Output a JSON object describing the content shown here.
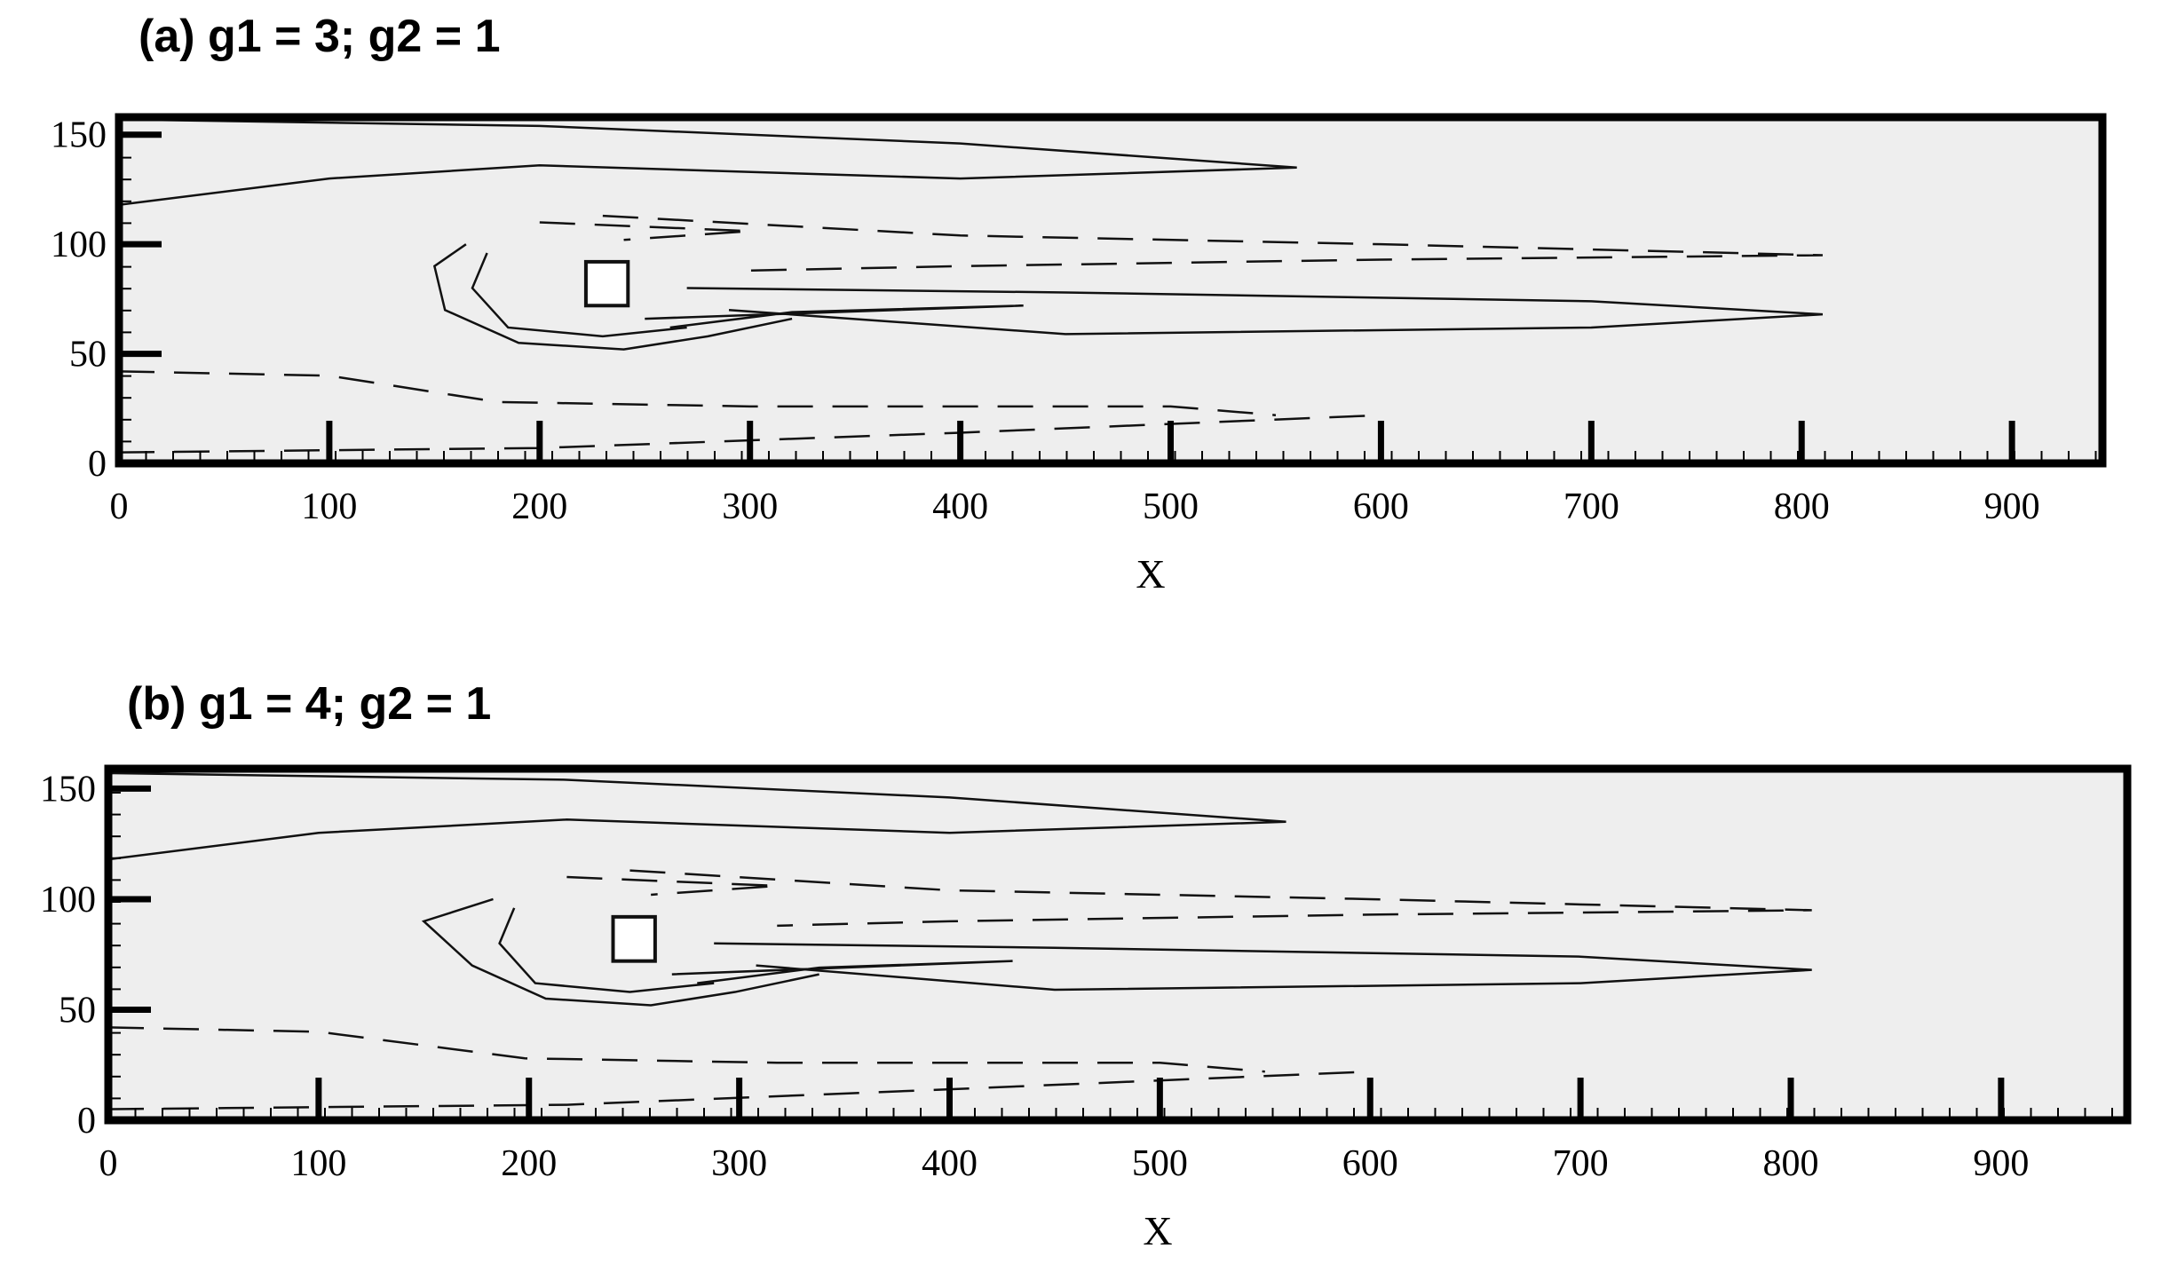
{
  "chart_data": [
    {
      "type": "contour",
      "title": "(a) g1 = 3; g2 = 1",
      "xlabel": "X",
      "xlim": [
        0,
        943
      ],
      "ylim": [
        0,
        158
      ],
      "xticks": [
        0,
        100,
        200,
        300,
        400,
        500,
        600,
        700,
        800,
        900
      ],
      "yticks": [
        0,
        50,
        100,
        150
      ]
    },
    {
      "type": "contour",
      "title": "(b) g1 = 4; g2 = 1",
      "xlabel": "X",
      "xlim": [
        0,
        960
      ],
      "ylim": [
        0,
        159
      ],
      "xticks": [
        0,
        100,
        200,
        300,
        400,
        500,
        600,
        700,
        800,
        900
      ],
      "yticks": [
        0,
        50,
        100,
        150
      ]
    }
  ]
}
